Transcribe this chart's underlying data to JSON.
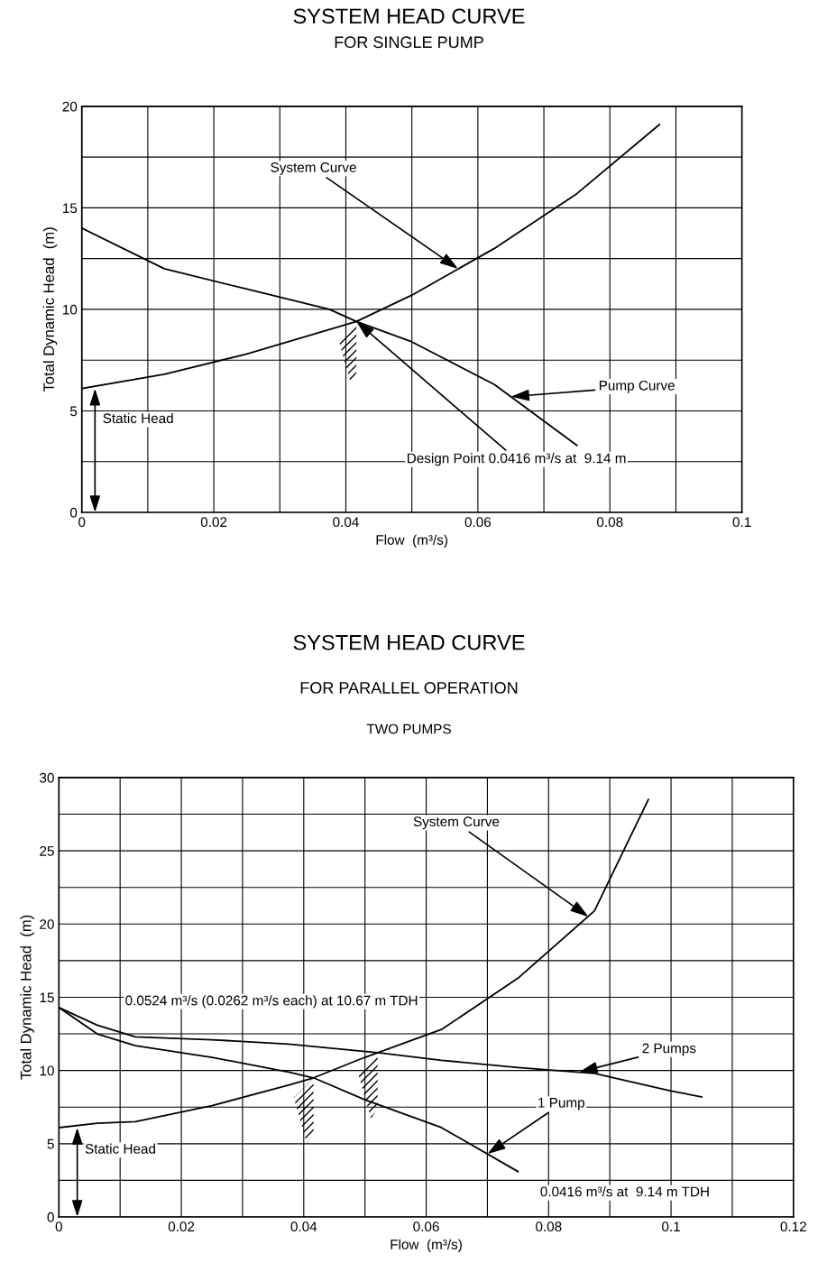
{
  "chart_data": [
    {
      "type": "line",
      "title": "SYSTEM HEAD CURVE",
      "subtitle": "FOR SINGLE PUMP",
      "xlabel": "Flow  (m³/s)",
      "ylabel": "Total Dynamic Head  (m)",
      "xlim": [
        0,
        0.1
      ],
      "xticks": [
        0,
        {
          "value": 0.01,
          "label": null
        },
        0.02,
        {
          "value": 0.03,
          "label": null
        },
        0.04,
        {
          "value": 0.05,
          "label": null
        },
        0.06,
        {
          "value": 0.07,
          "label": null
        },
        0.08,
        {
          "value": 0.09,
          "label": null
        },
        0.1
      ],
      "ylim": [
        0,
        20
      ],
      "yticks": [
        0,
        {
          "value": 2.5,
          "label": null
        },
        5,
        {
          "value": 7.5,
          "label": null
        },
        10,
        {
          "value": 12.5,
          "label": null
        },
        15,
        {
          "value": 17.5,
          "label": null
        },
        20
      ],
      "grid": true,
      "legend": false,
      "marker": "none",
      "line_style": "solid",
      "series": [
        {
          "color": "#000000",
          "x": [
            0,
            0.0125,
            0.025,
            0.0333,
            0.0416,
            0.05,
            0.0625,
            0.075,
            0.0875
          ],
          "values": [
            6.1,
            6.8,
            7.8,
            8.6,
            9.4,
            10.7,
            13,
            15.7,
            19.1
          ]
        },
        {
          "color": "#000000",
          "x": [
            0,
            0.0125,
            0.025,
            0.0375,
            0.0416,
            0.05,
            0.0625,
            0.075
          ],
          "values": [
            14,
            12,
            11,
            10,
            9.4,
            8.4,
            6.3,
            3.3
          ]
        }
      ],
      "annotations": [
        {
          "text": "System Curve",
          "x": 0.057,
          "y": 12.0
        },
        {
          "text": "Pump Curve",
          "x": 0.065,
          "y": 5.7
        },
        {
          "text": "Static Head",
          "x": 0.002,
          "y": 6.1
        },
        {
          "text": "Design Point 0.0416 m³/s at  9.14 m",
          "x": 0.0416,
          "y": 9.4
        }
      ]
    },
    {
      "type": "line",
      "title": "SYSTEM HEAD CURVE",
      "subtitle": "FOR PARALLEL OPERATION",
      "xlabel": "Flow  (m³/s)",
      "ylabel": "Total Dynamic Head  (m)",
      "xlim": [
        0,
        0.12
      ],
      "xticks": [
        0,
        {
          "value": 0.01,
          "label": null
        },
        0.02,
        {
          "value": 0.03,
          "label": null
        },
        0.04,
        {
          "value": 0.05,
          "label": null
        },
        0.06,
        {
          "value": 0.07,
          "label": null
        },
        0.08,
        {
          "value": 0.09,
          "label": null
        },
        0.1,
        {
          "value": 0.11,
          "label": null
        },
        0.12
      ],
      "ylim": [
        0,
        30
      ],
      "yticks": [
        0,
        {
          "value": 2.5,
          "label": null
        },
        5,
        {
          "value": 7.5,
          "label": null
        },
        10,
        {
          "value": 12.5,
          "label": null
        },
        15,
        {
          "value": 17.5,
          "label": null
        },
        20,
        {
          "value": 22.5,
          "label": null
        },
        25,
        {
          "value": 27.5,
          "label": null
        },
        30
      ],
      "grid": true,
      "legend": false,
      "marker": "none",
      "line_style": "solid",
      "series": [
        {
          "color": "#000000",
          "x": [
            0,
            0.00625,
            0.0125,
            0.025,
            0.0375,
            0.0416,
            0.05,
            0.0625,
            0.075,
            0.0875,
            0.0963
          ],
          "values": [
            6.1,
            6.4,
            6.5,
            7.6,
            9.0,
            9.5,
            10.9,
            12.8,
            16.3,
            20.9,
            28.5
          ]
        },
        {
          "color": "#000000",
          "x": [
            0,
            0.00625,
            0.0125,
            0.025,
            0.0375,
            0.0416,
            0.05,
            0.0625,
            0.075
          ],
          "values": [
            14.3,
            12.5,
            11.7,
            10.9,
            9.9,
            9.5,
            8.0,
            6.1,
            3.1
          ]
        },
        {
          "color": "#000000",
          "x": [
            0,
            0.00625,
            0.0125,
            0.025,
            0.0375,
            0.0524,
            0.0625,
            0.075,
            0.0875,
            0.1,
            0.105
          ],
          "values": [
            14.3,
            13.1,
            12.3,
            12.1,
            11.8,
            11.2,
            10.7,
            10.2,
            9.8,
            8.6,
            8.2
          ]
        }
      ],
      "annotations": [
        "TWO PUMPS",
        {
          "text": "System Curve",
          "x": 0.0865,
          "y": 20.5
        },
        {
          "text": "2 Pumps",
          "x": 0.085,
          "y": 9.9
        },
        {
          "text": "1 Pump",
          "x": 0.07,
          "y": 4.3
        },
        {
          "text": "Static Head",
          "x": 0.003,
          "y": 6.1
        },
        "0.0524 m³/s (0.0262 m³/s each) at 10.67 m TDH",
        "0.0416 m³/s at  9.14 m TDH"
      ]
    }
  ]
}
